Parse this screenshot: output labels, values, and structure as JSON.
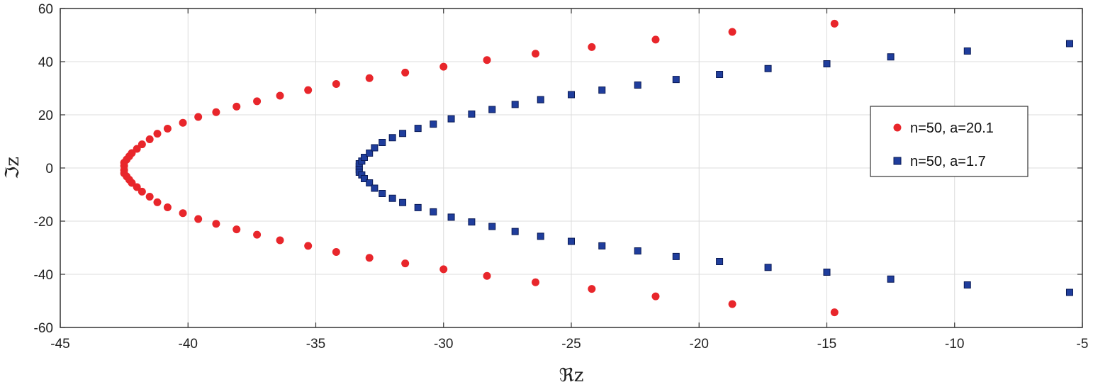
{
  "chart_data": {
    "type": "scatter",
    "title": "",
    "xlabel": "ℜz",
    "ylabel": "ℑz",
    "xlim": [
      -45,
      -5
    ],
    "ylim": [
      -60,
      60
    ],
    "xticks": [
      -45,
      -40,
      -35,
      -30,
      -25,
      -20,
      -15,
      -10,
      -5
    ],
    "yticks": [
      -60,
      -40,
      -20,
      0,
      20,
      40,
      60
    ],
    "xtick_labels": [
      "-45",
      "-40",
      "-35",
      "-30",
      "-25",
      "-20",
      "-15",
      "-10",
      "-5"
    ],
    "ytick_labels": [
      "-60",
      "-40",
      "-20",
      "0",
      "20",
      "40",
      "60"
    ],
    "grid": true,
    "legend_position": "right",
    "series": [
      {
        "name": "n=50, a=20.1",
        "marker": "circle",
        "color": "#e8262b",
        "points": [
          [
            -42.5,
            0.8
          ],
          [
            -42.5,
            2.0
          ],
          [
            -42.4,
            3.2
          ],
          [
            -42.3,
            4.4
          ],
          [
            -42.2,
            5.6
          ],
          [
            -42.0,
            7.2
          ],
          [
            -41.8,
            8.9
          ],
          [
            -41.5,
            10.8
          ],
          [
            -41.2,
            12.9
          ],
          [
            -40.8,
            14.8
          ],
          [
            -40.2,
            17.0
          ],
          [
            -39.6,
            19.2
          ],
          [
            -38.9,
            21.0
          ],
          [
            -38.1,
            23.1
          ],
          [
            -37.3,
            25.1
          ],
          [
            -36.4,
            27.2
          ],
          [
            -35.3,
            29.3
          ],
          [
            -34.2,
            31.6
          ],
          [
            -32.9,
            33.8
          ],
          [
            -31.5,
            35.9
          ],
          [
            -30.0,
            38.1
          ],
          [
            -28.3,
            40.6
          ],
          [
            -26.4,
            43.0
          ],
          [
            -24.2,
            45.5
          ],
          [
            -21.7,
            48.3
          ],
          [
            -18.7,
            51.2
          ],
          [
            -14.7,
            54.3
          ],
          [
            -42.5,
            -0.8
          ],
          [
            -42.5,
            -2.0
          ],
          [
            -42.4,
            -3.2
          ],
          [
            -42.3,
            -4.4
          ],
          [
            -42.2,
            -5.6
          ],
          [
            -42.0,
            -7.2
          ],
          [
            -41.8,
            -8.9
          ],
          [
            -41.5,
            -10.8
          ],
          [
            -41.2,
            -12.9
          ],
          [
            -40.8,
            -14.8
          ],
          [
            -40.2,
            -17.0
          ],
          [
            -39.6,
            -19.2
          ],
          [
            -38.9,
            -21.0
          ],
          [
            -38.1,
            -23.1
          ],
          [
            -37.3,
            -25.1
          ],
          [
            -36.4,
            -27.2
          ],
          [
            -35.3,
            -29.3
          ],
          [
            -34.2,
            -31.6
          ],
          [
            -32.9,
            -33.8
          ],
          [
            -31.5,
            -35.9
          ],
          [
            -30.0,
            -38.1
          ],
          [
            -28.3,
            -40.6
          ],
          [
            -26.4,
            -43.0
          ],
          [
            -24.2,
            -45.5
          ],
          [
            -21.7,
            -48.3
          ],
          [
            -18.7,
            -51.2
          ],
          [
            -14.7,
            -54.3
          ]
        ]
      },
      {
        "name": "n=50, a=1.7",
        "marker": "square",
        "color": "#1f3d9c",
        "points": [
          [
            -33.3,
            0.6
          ],
          [
            -33.3,
            1.6
          ],
          [
            -33.2,
            2.6
          ],
          [
            -33.1,
            4.0
          ],
          [
            -32.9,
            5.6
          ],
          [
            -32.7,
            7.6
          ],
          [
            -32.4,
            9.6
          ],
          [
            -32.0,
            11.4
          ],
          [
            -31.6,
            13.0
          ],
          [
            -31.0,
            14.9
          ],
          [
            -30.4,
            16.5
          ],
          [
            -29.7,
            18.5
          ],
          [
            -28.9,
            20.3
          ],
          [
            -28.1,
            22.0
          ],
          [
            -27.2,
            23.9
          ],
          [
            -26.2,
            25.7
          ],
          [
            -25.0,
            27.6
          ],
          [
            -23.8,
            29.3
          ],
          [
            -22.4,
            31.2
          ],
          [
            -20.9,
            33.3
          ],
          [
            -19.2,
            35.2
          ],
          [
            -17.3,
            37.4
          ],
          [
            -15.0,
            39.2
          ],
          [
            -12.5,
            41.8
          ],
          [
            -9.5,
            44.0
          ],
          [
            -5.5,
            46.8
          ],
          [
            -33.3,
            -0.6
          ],
          [
            -33.3,
            -1.6
          ],
          [
            -33.2,
            -2.6
          ],
          [
            -33.1,
            -4.0
          ],
          [
            -32.9,
            -5.6
          ],
          [
            -32.7,
            -7.6
          ],
          [
            -32.4,
            -9.6
          ],
          [
            -32.0,
            -11.4
          ],
          [
            -31.6,
            -13.0
          ],
          [
            -31.0,
            -14.9
          ],
          [
            -30.4,
            -16.5
          ],
          [
            -29.7,
            -18.5
          ],
          [
            -28.9,
            -20.3
          ],
          [
            -28.1,
            -22.0
          ],
          [
            -27.2,
            -23.9
          ],
          [
            -26.2,
            -25.7
          ],
          [
            -25.0,
            -27.6
          ],
          [
            -23.8,
            -29.3
          ],
          [
            -22.4,
            -31.2
          ],
          [
            -20.9,
            -33.3
          ],
          [
            -19.2,
            -35.2
          ],
          [
            -17.3,
            -37.4
          ],
          [
            -15.0,
            -39.2
          ],
          [
            -12.5,
            -41.8
          ],
          [
            -9.5,
            -44.0
          ],
          [
            -5.5,
            -46.8
          ]
        ]
      }
    ]
  }
}
